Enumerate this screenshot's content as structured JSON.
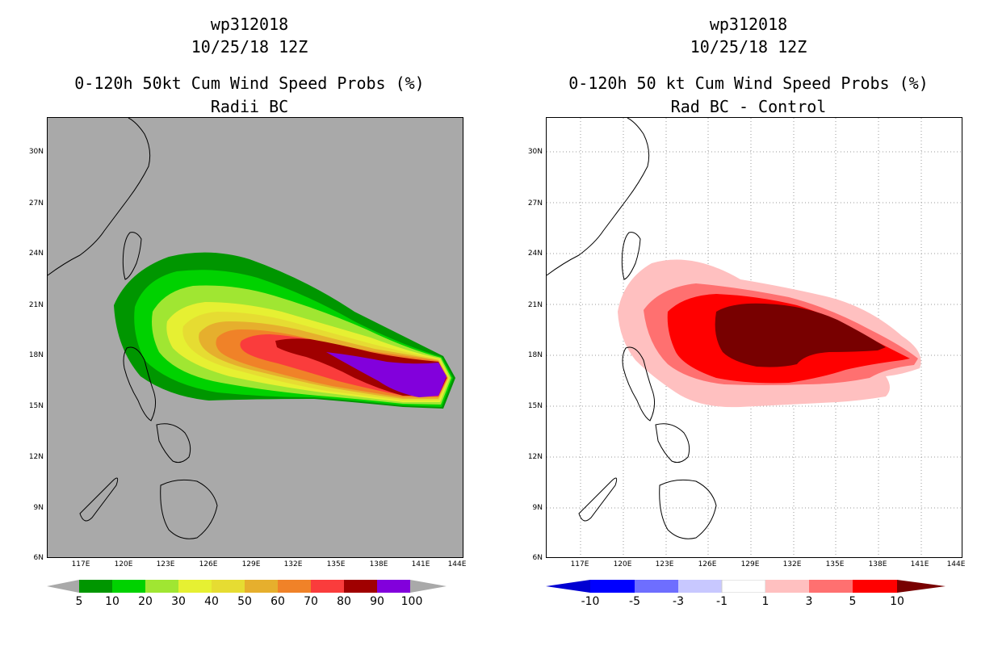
{
  "left_panel": {
    "storm": "wp312018",
    "datetime": "10/25/18 12Z",
    "title": "0-120h 50kt Cum Wind Speed Probs (%)",
    "subtitle": "Radii BC",
    "lat_labels": [
      "30N",
      "27N",
      "24N",
      "21N",
      "18N",
      "15N",
      "12N",
      "9N",
      "6N"
    ],
    "lon_labels": [
      "117E",
      "120E",
      "123E",
      "126E",
      "129E",
      "132E",
      "135E",
      "138E",
      "141E",
      "144E"
    ],
    "colorbar": {
      "labels": [
        "5",
        "10",
        "20",
        "30",
        "40",
        "50",
        "60",
        "70",
        "80",
        "90",
        "100"
      ],
      "colors": [
        "#009600",
        "#00d200",
        "#a0e632",
        "#e6f032",
        "#e6dc32",
        "#e6af2d",
        "#f08228",
        "#fa3c3c",
        "#a00000",
        "#8200dc"
      ]
    },
    "background": "#a9a9a9"
  },
  "right_panel": {
    "storm": "wp312018",
    "datetime": "10/25/18 12Z",
    "title": "0-120h 50 kt Cum Wind Speed Probs (%)",
    "subtitle": "Rad BC - Control",
    "lat_labels": [
      "30N",
      "27N",
      "24N",
      "21N",
      "18N",
      "15N",
      "12N",
      "9N",
      "6N"
    ],
    "lon_labels": [
      "117E",
      "120E",
      "123E",
      "126E",
      "129E",
      "132E",
      "135E",
      "138E",
      "141E",
      "144E"
    ],
    "colorbar": {
      "labels": [
        "-10",
        "-5",
        "-3",
        "-1",
        "1",
        "3",
        "5",
        "10"
      ],
      "colors": [
        "#0000d2",
        "#0000ff",
        "#6e6eff",
        "#c8c8ff",
        "#ffffff",
        "#ffc0c0",
        "#ff7070",
        "#ff0000",
        "#780000"
      ]
    },
    "background": "#ffffff"
  }
}
